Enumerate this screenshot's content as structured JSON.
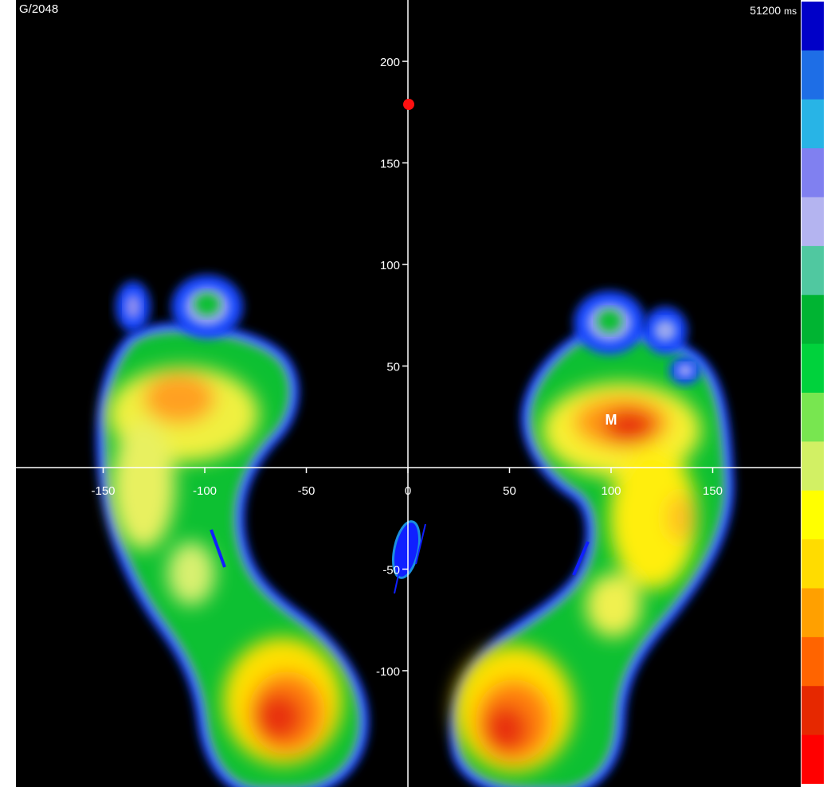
{
  "header": {
    "gain_label": "G/2048",
    "time_value": "51200",
    "time_unit": "ms"
  },
  "plot": {
    "x_ticks": [
      {
        "value": -150,
        "label": "-150"
      },
      {
        "value": -100,
        "label": "-100"
      },
      {
        "value": -50,
        "label": "-50"
      },
      {
        "value": 0,
        "label": "0"
      },
      {
        "value": 50,
        "label": "50"
      },
      {
        "value": 100,
        "label": "100"
      },
      {
        "value": 150,
        "label": "150"
      }
    ],
    "y_ticks": [
      {
        "value": 200,
        "label": "200"
      },
      {
        "value": 150,
        "label": "150"
      },
      {
        "value": 100,
        "label": "100"
      },
      {
        "value": 50,
        "label": "50"
      },
      {
        "value": -50,
        "label": "-50"
      },
      {
        "value": -100,
        "label": "-100"
      }
    ],
    "marker_label": "M",
    "colors": {
      "background": "#000000",
      "axis": "#ffffff",
      "target_point": "#ff1010",
      "cop_ellipse": "#1a8fe0",
      "cop_trace": "#1020ff"
    }
  },
  "color_scale": {
    "stops": [
      "#0000c8",
      "#1e6ee6",
      "#28b4e6",
      "#8080f0",
      "#b4b4f0",
      "#50c8a0",
      "#00b432",
      "#00d23c",
      "#78e650",
      "#d2f064",
      "#ffff00",
      "#ffdc00",
      "#ffa000",
      "#ff6400",
      "#e62800",
      "#ff0000"
    ]
  }
}
